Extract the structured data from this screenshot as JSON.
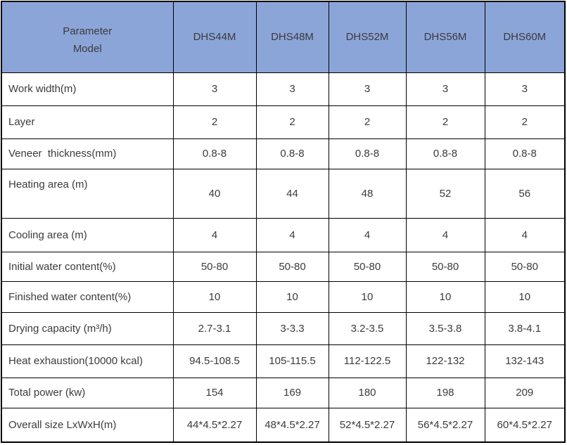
{
  "table": {
    "corner_header": {
      "line1": "Parameter",
      "line2": "Model"
    },
    "model_columns": [
      "DHS44M",
      "DHS48M",
      "DHS52M",
      "DHS56M",
      "DHS60M"
    ],
    "rows": [
      {
        "label": "Work width(m)",
        "values": [
          "3",
          "3",
          "3",
          "3",
          "3"
        ]
      },
      {
        "label": "Layer",
        "values": [
          "2",
          "2",
          "2",
          "2",
          "2"
        ]
      },
      {
        "label": "Veneer  thickness(mm)",
        "values": [
          "0.8-8",
          "0.8-8",
          "0.8-8",
          "0.8-8",
          "0.8-8"
        ]
      },
      {
        "label": "Heating area (m)",
        "values": [
          "40",
          "44",
          "48",
          "52",
          "56"
        ],
        "tall": true
      },
      {
        "label": "Cooling area (m)",
        "values": [
          "4",
          "4",
          "4",
          "4",
          "4"
        ]
      },
      {
        "label": "Initial water content(%)",
        "values": [
          "50-80",
          "50-80",
          "50-80",
          "50-80",
          "50-80"
        ]
      },
      {
        "label": "Finished water content(%)",
        "values": [
          "10",
          "10",
          "10",
          "10",
          "10"
        ]
      },
      {
        "label": "Drying capacity (m³/h)",
        "values": [
          "2.7-3.1",
          "3-3.3",
          "3.2-3.5",
          "3.5-3.8",
          "3.8-4.1"
        ]
      },
      {
        "label": "Heat exhaustion(10000 kcal)",
        "values": [
          "94.5-108.5",
          "105-115.5",
          "112-122.5",
          "122-132",
          "132-143"
        ]
      },
      {
        "label": "Total power (kw)",
        "values": [
          "154",
          "169",
          "180",
          "198",
          "209"
        ]
      },
      {
        "label": "Overall size LxWxH(m)",
        "values": [
          "44*4.5*2.27",
          "48*4.5*2.27",
          "52*4.5*2.27",
          "56*4.5*2.27",
          "60*4.5*2.27"
        ]
      }
    ],
    "colors": {
      "header_bg": "#8CA5D9",
      "header_text": "#3A3A3A",
      "body_text": "#3B3B3B",
      "border": "#000000",
      "background": "#FFFFFF"
    }
  }
}
